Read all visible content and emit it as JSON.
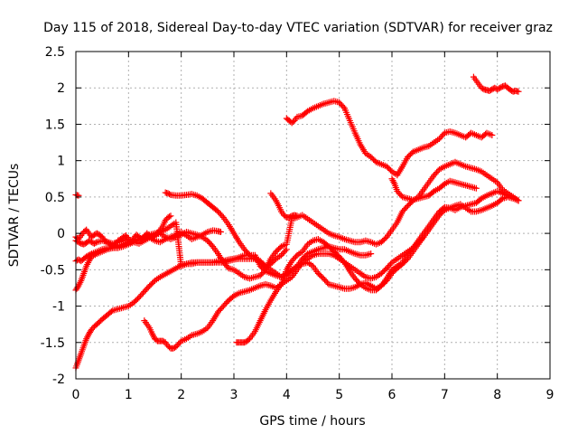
{
  "chart_data": {
    "type": "scatter",
    "title": "Day 115 of 2018, Sidereal Day-to-day VTEC variation (SDTVAR) for receiver graz",
    "xlabel": "GPS time / hours",
    "ylabel": "SDTVAR / TECUs",
    "xlim": [
      0,
      9
    ],
    "ylim": [
      -2,
      2.5
    ],
    "xticks": [
      "0",
      "1",
      "2",
      "3",
      "4",
      "5",
      "6",
      "7",
      "8",
      "9"
    ],
    "yticks": [
      "-2",
      "-1.5",
      "-1",
      "-0.5",
      "0",
      "0.5",
      "1",
      "1.5",
      "2",
      "2.5"
    ],
    "grid": true,
    "marker": "plus",
    "color": "#ff0000",
    "series": [
      {
        "x": [
          0.0,
          0.05
        ],
        "y": [
          0.53,
          0.52
        ]
      },
      {
        "x": [
          0.0,
          0.05,
          0.1,
          0.15,
          0.2,
          0.25,
          0.3,
          0.35,
          0.4,
          0.45,
          0.5,
          0.55,
          0.6,
          0.65,
          0.7,
          0.75,
          0.8,
          0.85,
          0.9,
          0.95,
          1.0,
          1.05,
          1.1,
          1.15,
          1.2,
          1.25,
          1.3,
          1.35,
          1.4,
          1.45,
          1.5,
          1.55,
          1.6,
          1.65,
          1.7,
          1.75,
          1.8
        ],
        "y": [
          -0.05,
          -0.08,
          -0.03,
          0.02,
          0.05,
          0.0,
          -0.05,
          -0.02,
          0.0,
          -0.02,
          -0.05,
          -0.1,
          -0.12,
          -0.15,
          -0.18,
          -0.15,
          -0.1,
          -0.08,
          -0.05,
          -0.03,
          -0.08,
          -0.12,
          -0.06,
          -0.02,
          -0.05,
          -0.08,
          -0.04,
          0.0,
          -0.03,
          -0.06,
          -0.03,
          0.0,
          0.05,
          0.1,
          0.18,
          0.22,
          0.24
        ]
      },
      {
        "x": [
          0.0,
          0.05,
          0.1,
          0.15,
          0.2,
          0.25,
          0.3,
          0.35,
          0.4,
          0.5,
          0.6,
          0.7,
          0.8,
          0.9,
          1.0,
          1.1,
          1.2,
          1.3,
          1.4,
          1.5,
          1.6,
          1.7,
          1.8,
          1.9,
          2.0,
          2.1,
          2.2,
          2.3,
          2.4,
          2.5,
          2.6,
          2.7,
          2.75
        ],
        "y": [
          -0.1,
          -0.12,
          -0.14,
          -0.15,
          -0.13,
          -0.1,
          -0.12,
          -0.14,
          -0.12,
          -0.1,
          -0.12,
          -0.14,
          -0.12,
          -0.1,
          -0.08,
          -0.12,
          -0.14,
          -0.1,
          -0.06,
          -0.1,
          -0.12,
          -0.08,
          -0.05,
          -0.02,
          0.02,
          -0.03,
          -0.08,
          -0.05,
          -0.02,
          0.02,
          0.04,
          0.03,
          0.02
        ]
      },
      {
        "x": [
          0.0,
          0.05,
          0.1,
          0.15,
          0.2,
          0.25,
          0.3,
          0.4,
          0.5,
          0.6,
          0.7,
          0.8,
          0.9,
          1.0,
          1.1,
          1.2,
          1.3,
          1.4,
          1.5,
          1.6,
          1.7,
          1.8,
          1.9,
          2.0,
          2.1,
          2.2,
          2.3,
          2.4,
          2.5,
          2.6,
          2.7,
          2.8,
          2.9,
          3.0,
          3.1,
          3.2,
          3.3,
          3.4,
          3.5,
          3.6,
          3.7,
          3.8,
          3.9,
          4.0,
          4.1,
          4.2,
          4.3,
          4.4,
          4.5,
          4.6,
          4.7,
          4.8,
          4.9,
          5.0,
          5.1,
          5.2,
          5.3,
          5.4,
          5.5,
          5.6,
          5.7,
          5.8,
          5.9,
          6.0,
          6.1,
          6.2,
          6.3,
          6.4,
          6.5,
          6.6,
          6.7,
          6.8,
          6.9,
          7.0,
          7.1,
          7.2,
          7.3,
          7.4,
          7.5,
          7.6,
          7.7,
          7.8,
          7.9,
          8.0,
          8.1,
          8.2,
          8.3,
          8.4
        ],
        "y": [
          -0.38,
          -0.36,
          -0.38,
          -0.35,
          -0.32,
          -0.3,
          -0.28,
          -0.25,
          -0.22,
          -0.2,
          -0.2,
          -0.18,
          -0.15,
          -0.12,
          -0.1,
          -0.08,
          -0.06,
          -0.05,
          -0.02,
          0.0,
          -0.05,
          -0.08,
          -0.05,
          -0.02,
          0.02,
          0.0,
          -0.02,
          -0.05,
          -0.1,
          -0.18,
          -0.28,
          -0.4,
          -0.48,
          -0.5,
          -0.55,
          -0.6,
          -0.62,
          -0.6,
          -0.58,
          -0.5,
          -0.35,
          -0.25,
          -0.18,
          -0.15,
          0.2,
          0.22,
          0.25,
          0.2,
          0.15,
          0.1,
          0.05,
          0.0,
          -0.03,
          -0.05,
          -0.08,
          -0.1,
          -0.12,
          -0.12,
          -0.1,
          -0.12,
          -0.15,
          -0.12,
          -0.05,
          0.05,
          0.15,
          0.3,
          0.38,
          0.45,
          0.5,
          0.6,
          0.7,
          0.8,
          0.88,
          0.92,
          0.95,
          0.98,
          0.95,
          0.92,
          0.9,
          0.88,
          0.85,
          0.8,
          0.75,
          0.7,
          0.6,
          0.55,
          0.5,
          0.45
        ]
      },
      {
        "x": [
          0.0,
          0.05,
          0.1,
          0.15,
          0.2,
          0.25,
          0.3,
          0.4,
          0.5,
          0.6,
          0.7,
          0.8,
          0.9,
          1.0,
          1.1,
          1.2,
          1.3,
          1.4,
          1.5,
          1.6,
          1.7,
          1.8,
          1.9,
          2.0,
          2.1,
          2.2,
          2.3,
          2.4,
          2.5,
          2.6,
          2.7,
          2.8,
          2.9,
          3.0,
          3.1,
          3.2,
          3.3,
          3.4,
          3.5,
          3.6,
          3.7,
          3.8,
          3.9,
          4.0,
          4.1,
          4.2,
          4.3,
          4.4,
          4.5,
          4.6,
          4.7,
          4.8,
          4.9,
          5.0,
          5.1,
          5.2,
          5.3,
          5.4,
          5.5,
          5.6
        ],
        "y": [
          -0.78,
          -0.72,
          -0.65,
          -0.55,
          -0.45,
          -0.38,
          -0.32,
          -0.28,
          -0.25,
          -0.22,
          -0.2,
          -0.2,
          -0.18,
          -0.15,
          -0.12,
          -0.08,
          -0.05,
          -0.02,
          0.0,
          0.02,
          0.05,
          0.1,
          0.15,
          -0.45,
          -0.42,
          -0.4,
          -0.4,
          -0.4,
          -0.4,
          -0.4,
          -0.38,
          -0.38,
          -0.36,
          -0.35,
          -0.33,
          -0.3,
          -0.3,
          -0.3,
          -0.45,
          -0.52,
          -0.55,
          -0.58,
          -0.6,
          -0.55,
          -0.5,
          -0.45,
          -0.35,
          -0.28,
          -0.25,
          -0.22,
          -0.2,
          -0.18,
          -0.2,
          -0.22,
          -0.22,
          -0.25,
          -0.28,
          -0.3,
          -0.3,
          -0.28
        ]
      },
      {
        "x": [
          0.0,
          0.05,
          0.1,
          0.15,
          0.2,
          0.25,
          0.3,
          0.35,
          0.4,
          0.5,
          0.6,
          0.7,
          0.8,
          0.9,
          1.0,
          1.1,
          1.2,
          1.3,
          1.4,
          1.5,
          1.6,
          1.7,
          1.8,
          1.9,
          2.0,
          2.1,
          2.2,
          2.3,
          2.4,
          2.5,
          2.6,
          2.7,
          2.8,
          2.9,
          3.0,
          3.1,
          3.2,
          3.3,
          3.4,
          3.5,
          3.6,
          3.7,
          3.8,
          3.9,
          4.0,
          4.1,
          4.2,
          4.3,
          4.4,
          4.5,
          4.6,
          4.7,
          4.8,
          4.9,
          5.0,
          5.1,
          5.2,
          5.3,
          5.4,
          5.5,
          5.6,
          5.7,
          5.8,
          5.9,
          6.0,
          6.1,
          6.2,
          6.3,
          6.4,
          6.5,
          6.6,
          6.7,
          6.8,
          6.9,
          7.0,
          7.1,
          7.2,
          7.3,
          7.4,
          7.5,
          7.6,
          7.7,
          7.8,
          7.9,
          8.0,
          8.1,
          8.2,
          8.3,
          8.4
        ],
        "y": [
          -1.85,
          -1.75,
          -1.65,
          -1.55,
          -1.45,
          -1.38,
          -1.32,
          -1.28,
          -1.25,
          -1.18,
          -1.12,
          -1.06,
          -1.04,
          -1.02,
          -1.0,
          -0.95,
          -0.88,
          -0.8,
          -0.72,
          -0.65,
          -0.6,
          -0.56,
          -0.52,
          -0.48,
          -0.44,
          -0.42,
          -0.42,
          -0.4,
          -0.4,
          -0.4,
          -0.4,
          -0.4,
          -0.4,
          -0.38,
          -0.36,
          -0.35,
          -0.35,
          -0.35,
          -0.35,
          -0.38,
          -0.45,
          -0.5,
          -0.55,
          -0.6,
          -0.58,
          -0.5,
          -0.45,
          -0.42,
          -0.4,
          -0.45,
          -0.55,
          -0.62,
          -0.7,
          -0.72,
          -0.74,
          -0.76,
          -0.76,
          -0.74,
          -0.7,
          -0.68,
          -0.72,
          -0.76,
          -0.72,
          -0.62,
          -0.5,
          -0.45,
          -0.4,
          -0.3,
          -0.2,
          -0.1,
          0.0,
          0.1,
          0.2,
          0.3,
          0.36,
          0.35,
          0.32,
          0.36,
          0.38,
          0.4,
          0.42,
          0.48,
          0.52,
          0.55,
          0.58,
          0.55,
          0.52,
          0.5,
          0.45
        ]
      },
      {
        "x": [
          1.3,
          1.35,
          1.4,
          1.45,
          1.5,
          1.55,
          1.6,
          1.65,
          1.7,
          1.75,
          1.8,
          1.85,
          1.9,
          1.95,
          2.0,
          2.1,
          2.2,
          2.3,
          2.4,
          2.5,
          2.6,
          2.7,
          2.8,
          2.9,
          3.0,
          3.1,
          3.2,
          3.3,
          3.4,
          3.5,
          3.6,
          3.7,
          3.8,
          3.9,
          4.0,
          4.1,
          4.2,
          4.3,
          4.4,
          4.5,
          4.6,
          4.7,
          4.8,
          4.9,
          5.0,
          5.1,
          5.2,
          5.3,
          5.4,
          5.5,
          5.6,
          5.7,
          5.8,
          5.9,
          6.0,
          6.1,
          6.2,
          6.3,
          6.4,
          6.5,
          6.6
        ],
        "y": [
          -1.2,
          -1.25,
          -1.3,
          -1.38,
          -1.45,
          -1.48,
          -1.48,
          -1.48,
          -1.5,
          -1.55,
          -1.58,
          -1.58,
          -1.56,
          -1.52,
          -1.48,
          -1.45,
          -1.4,
          -1.38,
          -1.35,
          -1.3,
          -1.2,
          -1.08,
          -1.0,
          -0.92,
          -0.86,
          -0.82,
          -0.8,
          -0.78,
          -0.75,
          -0.72,
          -0.7,
          -0.72,
          -0.75,
          -0.7,
          -0.65,
          -0.6,
          -0.5,
          -0.4,
          -0.35,
          -0.3,
          -0.28,
          -0.28,
          -0.28,
          -0.3,
          -0.35,
          -0.4,
          -0.45,
          -0.5,
          -0.55,
          -0.6,
          -0.62,
          -0.6,
          -0.55,
          -0.48,
          -0.4,
          -0.35,
          -0.3,
          -0.25,
          -0.2,
          -0.12,
          -0.05
        ]
      },
      {
        "x": [
          1.7,
          1.75,
          1.8,
          1.9,
          2.0,
          2.1,
          2.2,
          2.3,
          2.4,
          2.5,
          2.6,
          2.7,
          2.8,
          2.9,
          3.0,
          3.1,
          3.2,
          3.3,
          3.4,
          3.5,
          3.6,
          3.7,
          3.8,
          3.9,
          4.0
        ],
        "y": [
          0.56,
          0.55,
          0.53,
          0.52,
          0.52,
          0.53,
          0.54,
          0.52,
          0.48,
          0.42,
          0.36,
          0.3,
          0.22,
          0.12,
          0.0,
          -0.12,
          -0.22,
          -0.3,
          -0.35,
          -0.4,
          -0.45,
          -0.42,
          -0.35,
          -0.3,
          -0.22
        ]
      },
      {
        "x": [
          3.05,
          3.1,
          3.15,
          3.2,
          3.25,
          3.3,
          3.35,
          3.4,
          3.5,
          3.6,
          3.7,
          3.8,
          3.9,
          4.0,
          4.1,
          4.2,
          4.3,
          4.4,
          4.5,
          4.6,
          4.7,
          4.8,
          4.9,
          5.0,
          5.1,
          5.2,
          5.3,
          5.4,
          5.5,
          5.6,
          5.7,
          5.8,
          5.9,
          6.0,
          6.1,
          6.2,
          6.3,
          6.4,
          6.5,
          6.6,
          6.7,
          6.8,
          6.9,
          7.0,
          7.1,
          7.2,
          7.3,
          7.4,
          7.5,
          7.6,
          7.7,
          7.8,
          7.9,
          8.0,
          8.1,
          8.2,
          8.3,
          8.4
        ],
        "y": [
          -1.5,
          -1.5,
          -1.5,
          -1.5,
          -1.48,
          -1.45,
          -1.4,
          -1.35,
          -1.2,
          -1.05,
          -0.92,
          -0.8,
          -0.7,
          -0.5,
          -0.38,
          -0.3,
          -0.25,
          -0.15,
          -0.1,
          -0.08,
          -0.12,
          -0.18,
          -0.25,
          -0.32,
          -0.4,
          -0.52,
          -0.62,
          -0.7,
          -0.75,
          -0.78,
          -0.78,
          -0.72,
          -0.65,
          -0.55,
          -0.48,
          -0.42,
          -0.35,
          -0.25,
          -0.15,
          -0.05,
          0.05,
          0.15,
          0.25,
          0.32,
          0.35,
          0.38,
          0.4,
          0.35,
          0.3,
          0.3,
          0.32,
          0.35,
          0.38,
          0.42,
          0.48,
          0.5,
          0.48,
          0.45
        ]
      },
      {
        "x": [
          3.7,
          3.75,
          3.8,
          3.85,
          3.9,
          3.95,
          4.0,
          4.05,
          4.1,
          4.15,
          4.2
        ],
        "y": [
          0.55,
          0.5,
          0.45,
          0.38,
          0.3,
          0.25,
          0.22,
          0.22,
          0.24,
          0.25,
          0.24
        ]
      },
      {
        "x": [
          4.0,
          4.05,
          4.1,
          4.15,
          4.2,
          4.3,
          4.4,
          4.5,
          4.6,
          4.7,
          4.8,
          4.9,
          5.0,
          5.1,
          5.2,
          5.3,
          5.4,
          5.5,
          5.6,
          5.7,
          5.8,
          5.9,
          6.0,
          6.1,
          6.2,
          6.3,
          6.4,
          6.5,
          6.6,
          6.7,
          6.8,
          6.9,
          7.0,
          7.1,
          7.2,
          7.3,
          7.4,
          7.5,
          7.6,
          7.7,
          7.8,
          7.9
        ],
        "y": [
          1.58,
          1.55,
          1.52,
          1.55,
          1.6,
          1.62,
          1.68,
          1.72,
          1.75,
          1.78,
          1.8,
          1.82,
          1.8,
          1.72,
          1.55,
          1.38,
          1.22,
          1.1,
          1.05,
          0.98,
          0.95,
          0.92,
          0.85,
          0.8,
          0.92,
          1.05,
          1.12,
          1.15,
          1.18,
          1.2,
          1.25,
          1.3,
          1.38,
          1.4,
          1.38,
          1.35,
          1.32,
          1.38,
          1.35,
          1.32,
          1.38,
          1.35
        ]
      },
      {
        "x": [
          6.0,
          6.05,
          6.1,
          6.2,
          6.3,
          6.4,
          6.5,
          6.6,
          6.7,
          6.8,
          6.9,
          7.0,
          7.1,
          7.2,
          7.3,
          7.4,
          7.5,
          7.6
        ],
        "y": [
          0.75,
          0.68,
          0.58,
          0.5,
          0.48,
          0.46,
          0.48,
          0.5,
          0.52,
          0.58,
          0.62,
          0.68,
          0.72,
          0.7,
          0.68,
          0.66,
          0.64,
          0.62
        ]
      },
      {
        "x": [
          7.55,
          7.6,
          7.65,
          7.7,
          7.75,
          7.8,
          7.85,
          7.9,
          7.95,
          8.0,
          8.05,
          8.1,
          8.15,
          8.2,
          8.25,
          8.3,
          8.35,
          8.4
        ],
        "y": [
          2.15,
          2.1,
          2.05,
          2.0,
          1.98,
          1.97,
          1.96,
          1.98,
          2.0,
          1.98,
          2.0,
          2.02,
          2.03,
          2.0,
          1.97,
          1.95,
          1.96,
          1.95
        ]
      }
    ]
  }
}
